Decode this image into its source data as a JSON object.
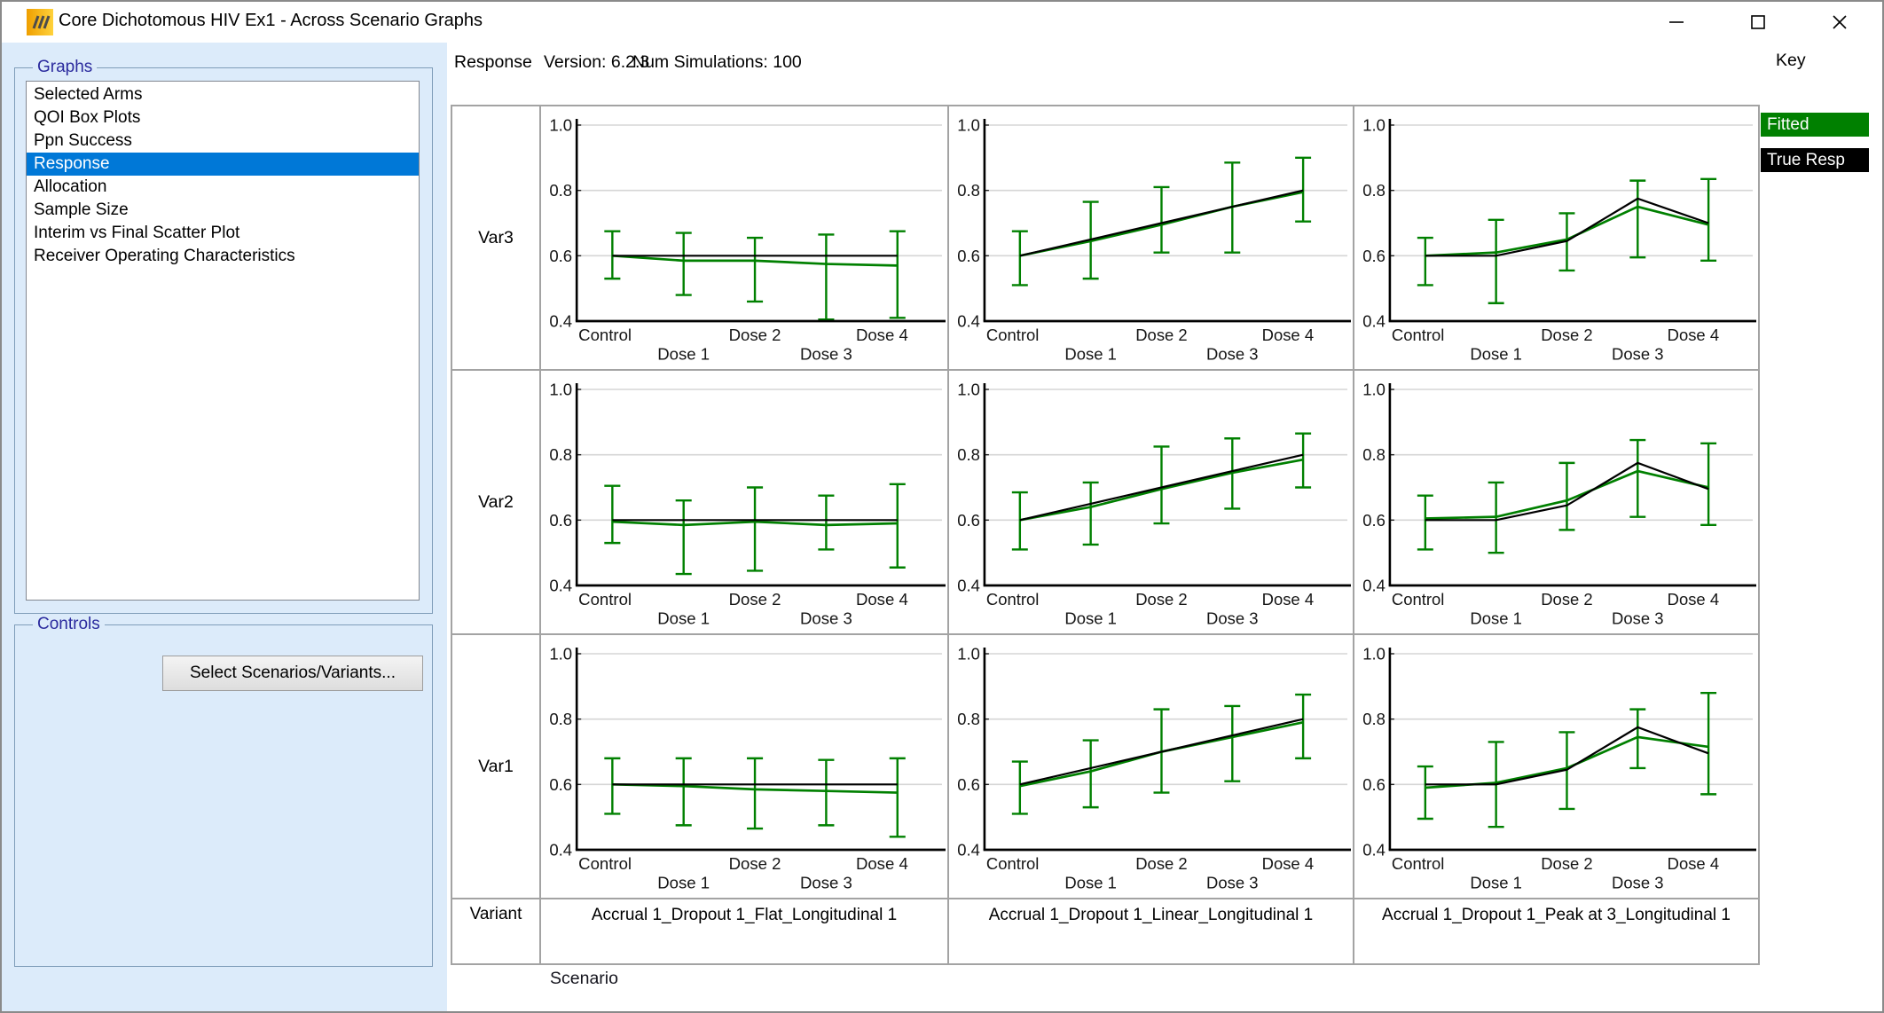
{
  "window": {
    "title": "Core Dichotomous HIV Ex1 - Across Scenario Graphs"
  },
  "sidebar": {
    "graphs_label": "Graphs",
    "items": [
      "Selected Arms",
      "QOI Box Plots",
      "Ppn Success",
      "Response",
      "Allocation",
      "Sample Size",
      "Interim vs Final Scatter Plot",
      "Receiver Operating Characteristics"
    ],
    "selected_item": "Response",
    "controls_label": "Controls",
    "select_button_label": "Select Scenarios/Variants..."
  },
  "header": {
    "graph_name": "Response",
    "version_label": "Version: 6.2.3",
    "num_simulations_label": "Num Simulations: 100"
  },
  "key": {
    "title": "Key",
    "items": [
      {
        "label": "Fitted",
        "color": "#008000",
        "text_color": "#ffffff"
      },
      {
        "label": "True Resp",
        "color": "#000000",
        "text_color": "#ffffff"
      }
    ]
  },
  "footer": {
    "variant_label": "Variant",
    "scenario_label": "Scenario"
  },
  "colors": {
    "panel_background": "#dcebfa",
    "group_label": "#2b2b9e",
    "selection": "#0078d7",
    "grid_border": "#a3a3a3",
    "plot_gridline": "#d6d6d6"
  },
  "chart_data": {
    "type": "line",
    "rows": [
      "Var3",
      "Var2",
      "Var1"
    ],
    "columns": [
      "Accrual 1_Dropout 1_Flat_Longitudinal 1",
      "Accrual 1_Dropout 1_Linear_Longitudinal 1",
      "Accrual 1_Dropout 1_Peak at 3_Longitudinal 1"
    ],
    "categories": [
      "Control",
      "Dose 1",
      "Dose 2",
      "Dose 3",
      "Dose 4"
    ],
    "ylim": [
      0.4,
      1.0
    ],
    "yticks": [
      0.4,
      0.6,
      0.8,
      1.0
    ],
    "legend_position": "top-right",
    "grid": true,
    "series_colors": {
      "fitted": "#008000",
      "true_resp": "#000000",
      "error_bar": "#008000"
    },
    "plots": [
      {
        "row": "Var3",
        "scenario": "Flat",
        "fitted": [
          0.6,
          0.585,
          0.585,
          0.575,
          0.57
        ],
        "true_resp": [
          0.6,
          0.6,
          0.6,
          0.6,
          0.6
        ],
        "err_lo": [
          0.53,
          0.48,
          0.46,
          0.405,
          0.41
        ],
        "err_hi": [
          0.675,
          0.67,
          0.655,
          0.665,
          0.675
        ]
      },
      {
        "row": "Var3",
        "scenario": "Linear",
        "fitted": [
          0.6,
          0.645,
          0.695,
          0.75,
          0.795
        ],
        "true_resp": [
          0.6,
          0.65,
          0.7,
          0.75,
          0.8
        ],
        "err_lo": [
          0.51,
          0.53,
          0.61,
          0.61,
          0.705
        ],
        "err_hi": [
          0.675,
          0.765,
          0.81,
          0.885,
          0.9
        ]
      },
      {
        "row": "Var3",
        "scenario": "Peak at 3",
        "fitted": [
          0.6,
          0.61,
          0.65,
          0.75,
          0.695
        ],
        "true_resp": [
          0.6,
          0.6,
          0.645,
          0.775,
          0.7
        ],
        "err_lo": [
          0.51,
          0.455,
          0.555,
          0.595,
          0.585
        ],
        "err_hi": [
          0.655,
          0.71,
          0.73,
          0.83,
          0.835
        ]
      },
      {
        "row": "Var2",
        "scenario": "Flat",
        "fitted": [
          0.595,
          0.585,
          0.595,
          0.585,
          0.59
        ],
        "true_resp": [
          0.6,
          0.6,
          0.6,
          0.6,
          0.6
        ],
        "err_lo": [
          0.53,
          0.435,
          0.445,
          0.51,
          0.455
        ],
        "err_hi": [
          0.705,
          0.66,
          0.7,
          0.675,
          0.71
        ]
      },
      {
        "row": "Var2",
        "scenario": "Linear",
        "fitted": [
          0.6,
          0.64,
          0.695,
          0.745,
          0.785
        ],
        "true_resp": [
          0.6,
          0.65,
          0.7,
          0.75,
          0.8
        ],
        "err_lo": [
          0.51,
          0.525,
          0.59,
          0.635,
          0.7
        ],
        "err_hi": [
          0.685,
          0.715,
          0.825,
          0.85,
          0.865
        ]
      },
      {
        "row": "Var2",
        "scenario": "Peak at 3",
        "fitted": [
          0.605,
          0.61,
          0.66,
          0.75,
          0.7
        ],
        "true_resp": [
          0.6,
          0.6,
          0.645,
          0.775,
          0.695
        ],
        "err_lo": [
          0.51,
          0.5,
          0.57,
          0.61,
          0.585
        ],
        "err_hi": [
          0.675,
          0.715,
          0.775,
          0.845,
          0.835
        ]
      },
      {
        "row": "Var1",
        "scenario": "Flat",
        "fitted": [
          0.6,
          0.595,
          0.585,
          0.58,
          0.575
        ],
        "true_resp": [
          0.6,
          0.6,
          0.6,
          0.6,
          0.6
        ],
        "err_lo": [
          0.51,
          0.475,
          0.465,
          0.475,
          0.44
        ],
        "err_hi": [
          0.68,
          0.68,
          0.68,
          0.675,
          0.68
        ]
      },
      {
        "row": "Var1",
        "scenario": "Linear",
        "fitted": [
          0.595,
          0.64,
          0.7,
          0.745,
          0.79
        ],
        "true_resp": [
          0.6,
          0.65,
          0.7,
          0.75,
          0.8
        ],
        "err_lo": [
          0.51,
          0.53,
          0.575,
          0.61,
          0.68
        ],
        "err_hi": [
          0.67,
          0.735,
          0.83,
          0.84,
          0.875
        ]
      },
      {
        "row": "Var1",
        "scenario": "Peak at 3",
        "fitted": [
          0.59,
          0.605,
          0.65,
          0.745,
          0.715
        ],
        "true_resp": [
          0.6,
          0.6,
          0.645,
          0.775,
          0.695
        ],
        "err_lo": [
          0.495,
          0.47,
          0.525,
          0.65,
          0.57
        ],
        "err_hi": [
          0.655,
          0.73,
          0.76,
          0.83,
          0.88
        ]
      }
    ]
  }
}
